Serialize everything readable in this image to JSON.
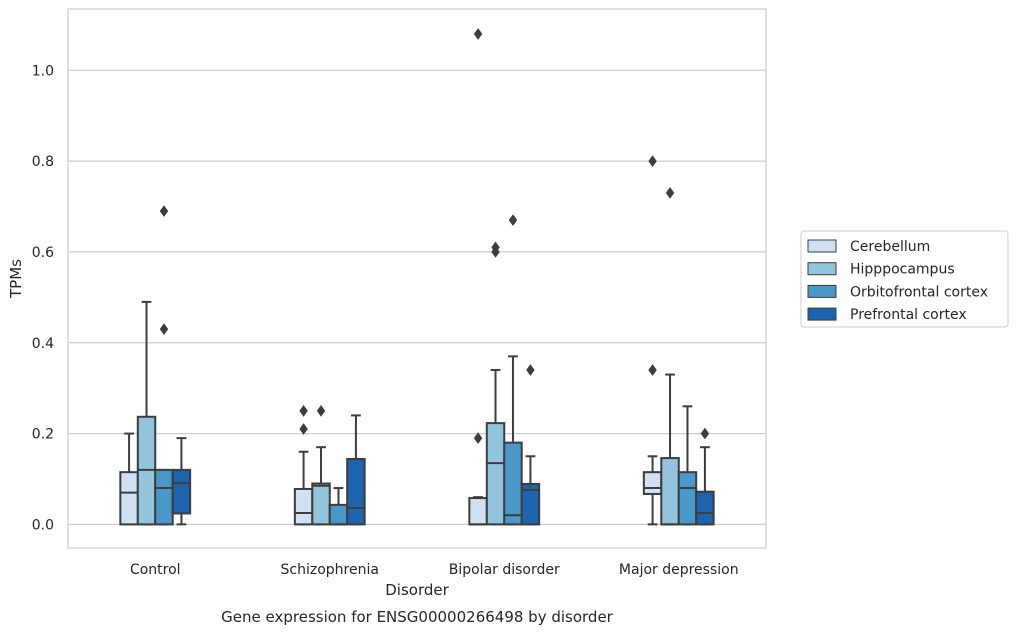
{
  "chart_data": {
    "type": "box",
    "title": "",
    "caption": "Gene expression for ENSG00000266498 by disorder",
    "xlabel": "Disorder",
    "ylabel": "TPMs",
    "ylim": [
      -0.052,
      1.135
    ],
    "yticks": [
      0.0,
      0.2,
      0.4,
      0.6,
      0.8,
      1.0
    ],
    "ytick_labels": [
      "0.0",
      "0.2",
      "0.4",
      "0.6",
      "0.8",
      "1.0"
    ],
    "grid": "horizontal",
    "legend_position": "right",
    "categories": [
      "Control",
      "Schizophrenia",
      "Bipolar disorder",
      "Major depression"
    ],
    "series": [
      {
        "name": "Cerebellum",
        "color": "#cfe1f2",
        "boxes": [
          {
            "whisker_low": 0.0,
            "q1": 0.0,
            "median": 0.07,
            "q3": 0.115,
            "whisker_high": 0.2,
            "outliers": []
          },
          {
            "whisker_low": 0.0,
            "q1": 0.0,
            "median": 0.025,
            "q3": 0.078,
            "whisker_high": 0.16,
            "outliers": [
              0.21,
              0.25
            ]
          },
          {
            "whisker_low": 0.0,
            "q1": 0.0,
            "median": 0.0,
            "q3": 0.058,
            "whisker_high": 0.06,
            "outliers": [
              0.19,
              1.08
            ]
          },
          {
            "whisker_low": 0.0,
            "q1": 0.067,
            "median": 0.08,
            "q3": 0.115,
            "whisker_high": 0.15,
            "outliers": [
              0.34,
              0.8
            ]
          }
        ]
      },
      {
        "name": "Hipppocampus",
        "color": "#93c4de",
        "boxes": [
          {
            "whisker_low": 0.0,
            "q1": 0.0,
            "median": 0.12,
            "q3": 0.237,
            "whisker_high": 0.49,
            "outliers": []
          },
          {
            "whisker_low": 0.0,
            "q1": 0.0,
            "median": 0.085,
            "q3": 0.09,
            "whisker_high": 0.17,
            "outliers": [
              0.25
            ]
          },
          {
            "whisker_low": 0.0,
            "q1": 0.0,
            "median": 0.135,
            "q3": 0.223,
            "whisker_high": 0.34,
            "outliers": [
              0.6,
              0.61
            ]
          },
          {
            "whisker_low": 0.0,
            "q1": 0.0,
            "median": 0.0,
            "q3": 0.146,
            "whisker_high": 0.33,
            "outliers": [
              0.73
            ]
          }
        ]
      },
      {
        "name": "Orbitofrontal cortex",
        "color": "#4a98c9",
        "boxes": [
          {
            "whisker_low": 0.0,
            "q1": 0.0,
            "median": 0.08,
            "q3": 0.12,
            "whisker_high": 0.12,
            "outliers": [
              0.43,
              0.69
            ]
          },
          {
            "whisker_low": 0.0,
            "q1": 0.0,
            "median": 0.0,
            "q3": 0.043,
            "whisker_high": 0.08,
            "outliers": []
          },
          {
            "whisker_low": 0.0,
            "q1": 0.0,
            "median": 0.02,
            "q3": 0.18,
            "whisker_high": 0.37,
            "outliers": [
              0.67
            ]
          },
          {
            "whisker_low": 0.0,
            "q1": 0.0,
            "median": 0.08,
            "q3": 0.115,
            "whisker_high": 0.26,
            "outliers": []
          }
        ]
      },
      {
        "name": "Prefrontal cortex",
        "color": "#1c64ad",
        "boxes": [
          {
            "whisker_low": 0.0,
            "q1": 0.024,
            "median": 0.091,
            "q3": 0.12,
            "whisker_high": 0.19,
            "outliers": []
          },
          {
            "whisker_low": 0.0,
            "q1": 0.0,
            "median": 0.036,
            "q3": 0.144,
            "whisker_high": 0.24,
            "outliers": []
          },
          {
            "whisker_low": 0.0,
            "q1": 0.0,
            "median": 0.076,
            "q3": 0.089,
            "whisker_high": 0.15,
            "outliers": [
              0.34
            ]
          },
          {
            "whisker_low": 0.0,
            "q1": 0.0,
            "median": 0.025,
            "q3": 0.072,
            "whisker_high": 0.17,
            "outliers": [
              0.2
            ]
          }
        ]
      }
    ]
  }
}
